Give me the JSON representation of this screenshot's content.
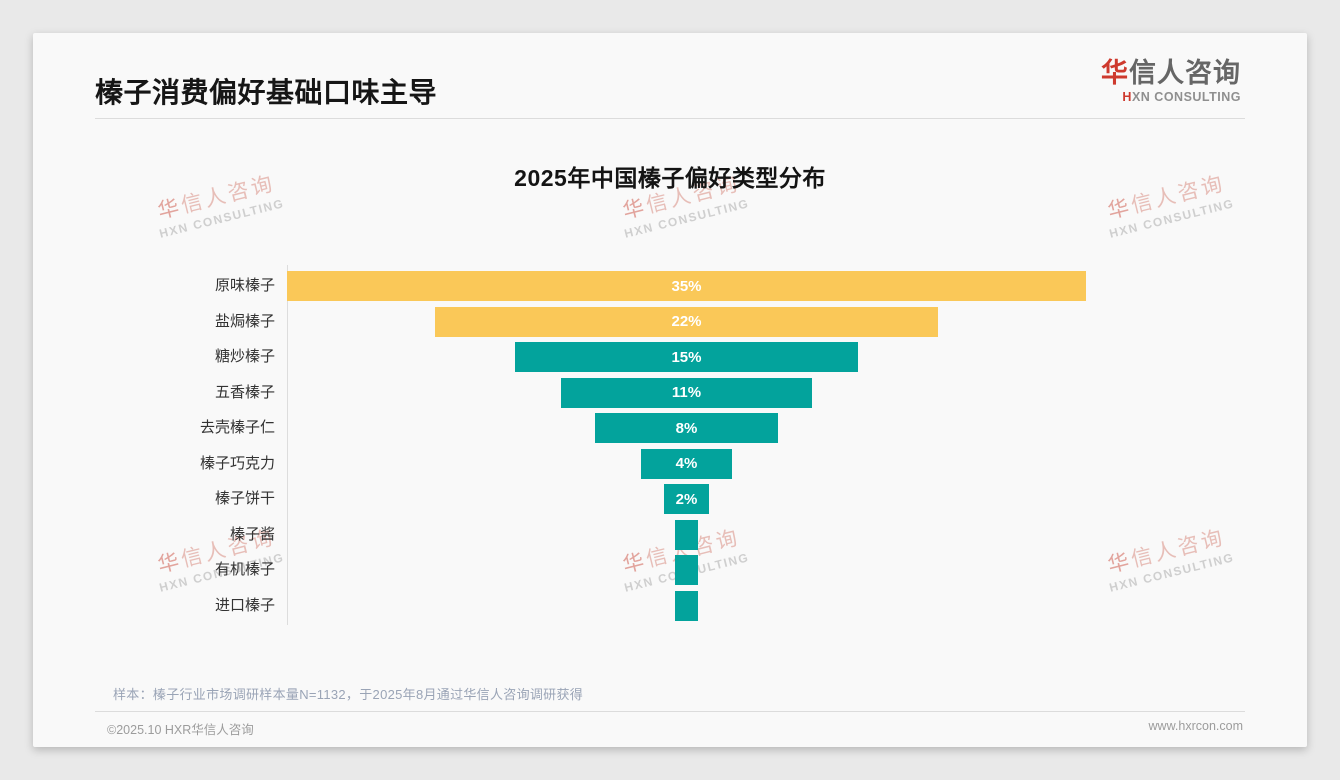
{
  "header": {
    "title": "榛子消费偏好基础口味主导",
    "logo": {
      "cn_accent": "华",
      "cn_rest": "信人咨询",
      "en_accent": "H",
      "en_rest": "XN CONSULTING"
    }
  },
  "watermark": {
    "line1_accent": "华",
    "line1_rest": "信人咨询",
    "line2": "HXN CONSULTING"
  },
  "chart_data": {
    "type": "bar",
    "subtype": "horizontal-centered-funnel",
    "title": "2025年中国榛子偏好类型分布",
    "unit": "%",
    "categories": [
      "原味榛子",
      "盐焗榛子",
      "糖炒榛子",
      "五香榛子",
      "去壳榛子仁",
      "榛子巧克力",
      "榛子饼干",
      "榛子酱",
      "有机榛子",
      "进口榛子"
    ],
    "values": [
      35,
      22,
      15,
      11,
      8,
      4,
      2,
      1,
      1,
      1
    ],
    "data_labels": [
      "35%",
      "22%",
      "15%",
      "11%",
      "8%",
      "4%",
      "2%",
      "",
      "",
      ""
    ],
    "bar_colors": [
      "#FAC858",
      "#FAC858",
      "#03A39C",
      "#03A39C",
      "#03A39C",
      "#03A39C",
      "#03A39C",
      "#03A39C",
      "#03A39C",
      "#03A39C"
    ],
    "xlim": [
      0,
      35
    ],
    "grid": false,
    "legend": false,
    "axis_line_color": "#DDDDDD"
  },
  "footnote": {
    "sample_note": "样本：榛子行业市场调研样本量N=1132，于2025年8月通过华信人咨询调研获得"
  },
  "footer": {
    "copyright": "©2025.10 HXR华信人咨询",
    "website": "www.hxrcon.com"
  },
  "colors": {
    "accent_red": "#CE3A2E",
    "bar_yellow": "#FAC858",
    "bar_teal": "#03A39C",
    "page_bg": "#E9E9E9",
    "card_bg": "#F9F9F9",
    "note_text": "#9AA4B6",
    "footer_text": "#9C9C9C"
  }
}
